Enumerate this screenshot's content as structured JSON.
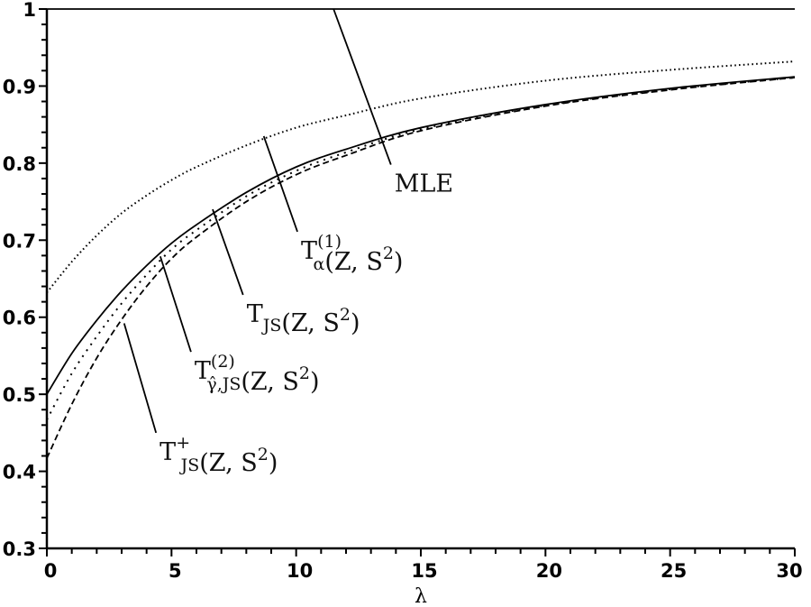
{
  "chart_data": {
    "type": "line",
    "title": "",
    "xlabel": "λ",
    "ylabel": "",
    "xlim": [
      0,
      30
    ],
    "ylim": [
      0.3,
      1.0
    ],
    "grid": false,
    "legend": "annotations with leader lines",
    "x_ticks": [
      0,
      5,
      10,
      15,
      20,
      25,
      30
    ],
    "x_tick_labels": [
      "0",
      "5",
      "10",
      "15",
      "20",
      "25",
      "30"
    ],
    "y_ticks": [
      0.3,
      0.4,
      0.5,
      0.6,
      0.7,
      0.8,
      0.9,
      1.0
    ],
    "y_tick_labels": [
      "0.3",
      "0.4",
      "0.5",
      "0.6",
      "0.7",
      "0.8",
      "0.9",
      "1"
    ],
    "x": [
      0,
      1,
      2,
      3,
      4,
      5,
      6,
      8,
      10,
      12,
      15,
      20,
      25,
      30
    ],
    "series": [
      {
        "name": "MLE",
        "style": "solid",
        "values": [
          1,
          1,
          1,
          1,
          1,
          1,
          1,
          1,
          1,
          1,
          1,
          1,
          1,
          1
        ]
      },
      {
        "name": "T_α^(1)(Z, S²)",
        "style": "dotted",
        "values": [
          0.632,
          0.672,
          0.706,
          0.735,
          0.758,
          0.778,
          0.795,
          0.823,
          0.846,
          0.862,
          0.884,
          0.907,
          0.921,
          0.932
        ]
      },
      {
        "name": "T_JS(Z, S²)",
        "style": "solid",
        "values": [
          0.5,
          0.553,
          0.596,
          0.634,
          0.667,
          0.696,
          0.72,
          0.762,
          0.795,
          0.818,
          0.846,
          0.876,
          0.897,
          0.912
        ]
      },
      {
        "name": "T_γ̂,JS^(2)(Z, S²)",
        "style": "dotted-sparse",
        "values": [
          0.467,
          0.527,
          0.575,
          0.618,
          0.655,
          0.688,
          0.713,
          0.757,
          0.79,
          0.814,
          0.844,
          0.875,
          0.896,
          0.911
        ]
      },
      {
        "name": "T_JS^+(Z, S²)",
        "style": "dashed",
        "values": [
          0.417,
          0.487,
          0.547,
          0.597,
          0.64,
          0.676,
          0.704,
          0.75,
          0.785,
          0.81,
          0.842,
          0.874,
          0.895,
          0.911
        ]
      }
    ],
    "annotations": [
      {
        "text": "MLE",
        "main": "MLE",
        "sub": "",
        "sup": "",
        "args": "",
        "leader_from": [
          11.5,
          1.0
        ],
        "leader_to": [
          13.8,
          0.798
        ]
      },
      {
        "text": "T_α^(1)(Z, S²)",
        "main": "T",
        "sub": "α",
        "sup": "(1)",
        "args": "(Z, S",
        "args_sup": "2",
        "args_close": ")",
        "leader_from": [
          8.7,
          0.835
        ],
        "leader_to": [
          10.05,
          0.711
        ]
      },
      {
        "text": "T_JS(Z, S²)",
        "main": "T",
        "sub": "JS",
        "sup": "",
        "args": "(Z, S",
        "args_sup": "2",
        "args_close": ")",
        "leader_from": [
          6.65,
          0.74
        ],
        "leader_to": [
          7.87,
          0.629
        ]
      },
      {
        "text": "T_γ̂,JS^(2)(Z, S²)",
        "main": "T",
        "sub": "γ̂,JS",
        "sup": "(2)",
        "args": "(Z, S",
        "args_sup": "2",
        "args_close": ")",
        "leader_from": [
          4.55,
          0.679
        ],
        "leader_to": [
          5.78,
          0.555
        ]
      },
      {
        "text": "T_JS^+(Z, S²)",
        "main": "T",
        "sub": "JS",
        "sup": "+",
        "args": "(Z, S",
        "args_sup": "2",
        "args_close": ")",
        "leader_from": [
          3.1,
          0.592
        ],
        "leader_to": [
          4.38,
          0.45
        ]
      }
    ]
  },
  "colors": {
    "background": "#ffffff",
    "ink": "#000000"
  }
}
